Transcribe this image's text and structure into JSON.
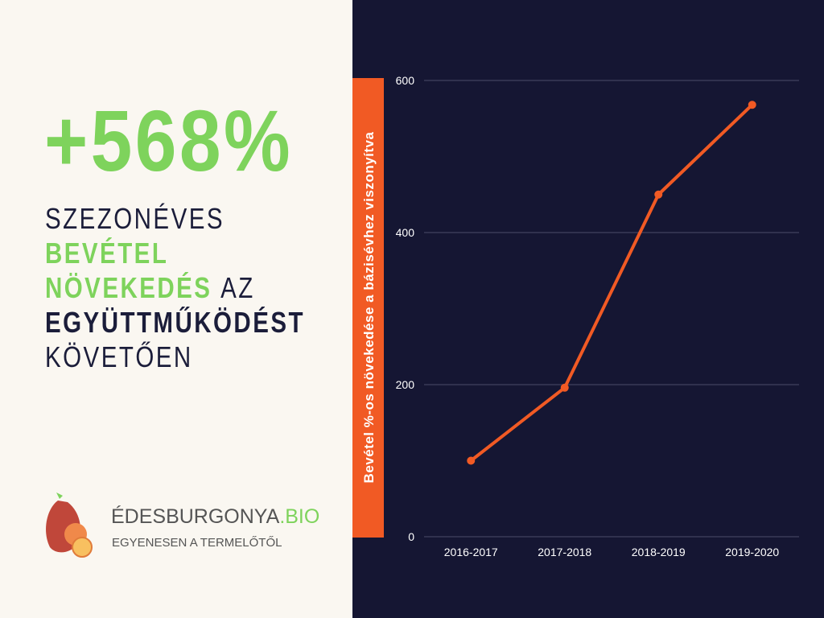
{
  "headline": {
    "stat": "+568%",
    "lines": [
      "SZEZONÉVES",
      "BEVÉTEL",
      "NÖVEKEDÉS",
      "AZ",
      "EGYÜTTMŰKÖDÉST",
      "KÖVETŐEN"
    ]
  },
  "logo": {
    "name": "ÉDESBURGONYA",
    "tld": ".BIO",
    "tagline": "EGYENESEN A TERMELŐTŐL"
  },
  "chart_data": {
    "type": "line",
    "y_label": "Bevétel %-os növekedése a bázisévhez viszonyítva",
    "categories": [
      "2016-2017",
      "2017-2018",
      "2018-2019",
      "2019-2020"
    ],
    "values": [
      100,
      196,
      450,
      568
    ],
    "color": "#f15a24",
    "ylim": [
      0,
      600
    ],
    "yticks": [
      0,
      200,
      400,
      600
    ],
    "grid": true
  }
}
